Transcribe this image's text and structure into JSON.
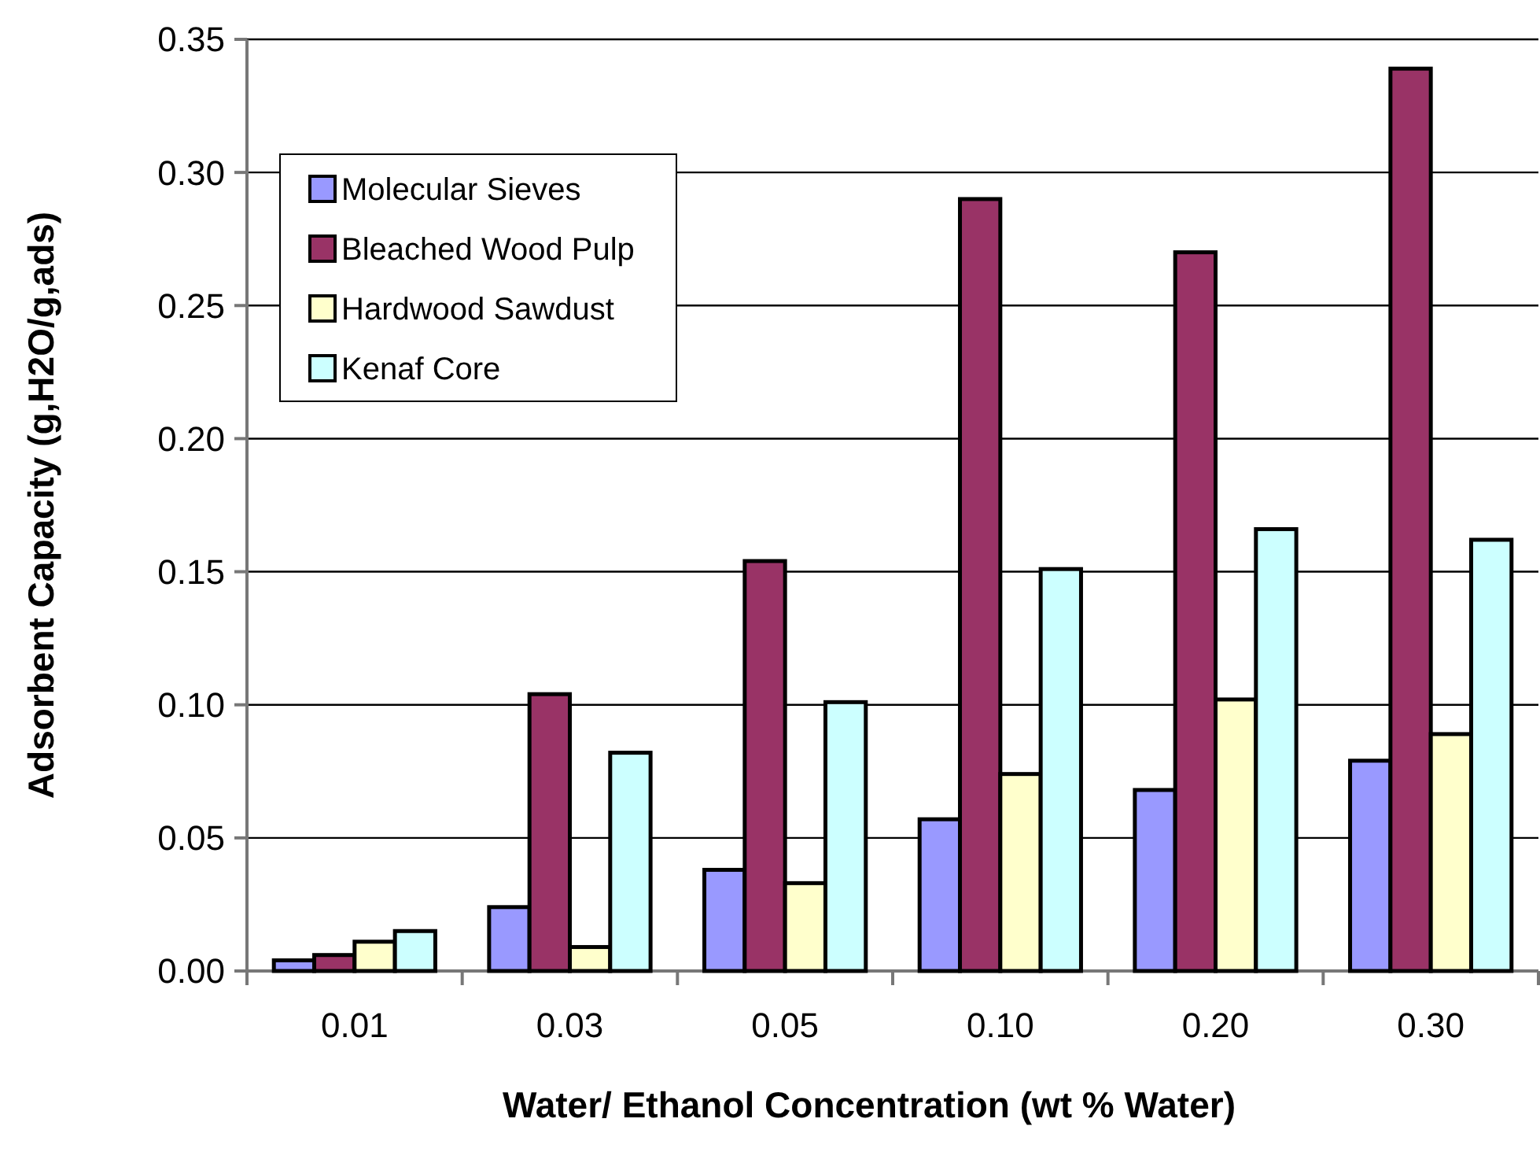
{
  "chart_data": {
    "type": "bar",
    "xlabel": "Water/ Ethanol Concentration (wt % Water)",
    "ylabel": "Adsorbent Capacity (g,H2O/g,ads)",
    "categories": [
      "0.01",
      "0.03",
      "0.05",
      "0.10",
      "0.20",
      "0.30"
    ],
    "series": [
      {
        "name": "Molecular Sieves",
        "color": "#9999ff",
        "values": [
          0.004,
          0.024,
          0.038,
          0.057,
          0.068,
          0.079
        ]
      },
      {
        "name": "Bleached Wood Pulp",
        "color": "#993366",
        "values": [
          0.006,
          0.104,
          0.154,
          0.29,
          0.27,
          0.339
        ]
      },
      {
        "name": "Hardwood Sawdust",
        "color": "#ffffcc",
        "values": [
          0.011,
          0.009,
          0.033,
          0.074,
          0.102,
          0.089
        ]
      },
      {
        "name": "Kenaf Core",
        "color": "#ccffff",
        "values": [
          0.015,
          0.082,
          0.101,
          0.151,
          0.166,
          0.162
        ]
      }
    ],
    "ylim": [
      0,
      0.35
    ],
    "yticks": [
      {
        "value": 0,
        "label": "0.00"
      },
      {
        "value": 0.05,
        "label": "0.05"
      },
      {
        "value": 0.1,
        "label": "0.10"
      },
      {
        "value": 0.15,
        "label": "0.15"
      },
      {
        "value": 0.2,
        "label": "0.20"
      },
      {
        "value": 0.25,
        "label": "0.25"
      },
      {
        "value": 0.3,
        "label": "0.30"
      },
      {
        "value": 0.35,
        "label": "0.35"
      }
    ],
    "grid": "y",
    "legend": "top left"
  }
}
